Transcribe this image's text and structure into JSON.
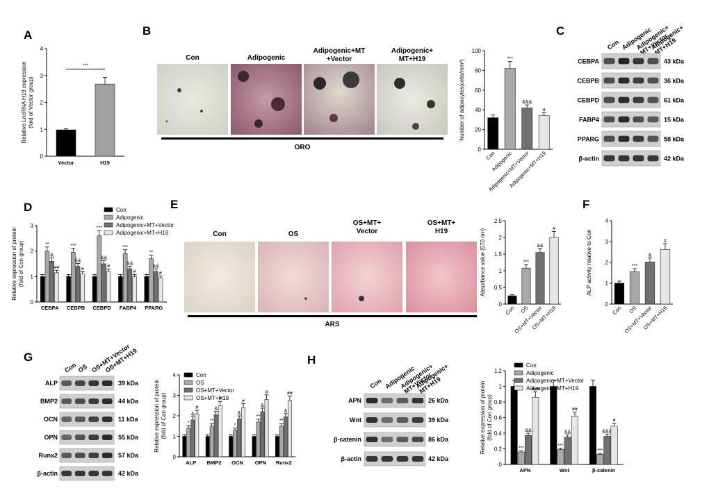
{
  "colors": {
    "con": "#000000",
    "g2": "#a8a8a8",
    "g3": "#707070",
    "g4": "#e6e6e6",
    "vector": "#000000",
    "h19": "#a0a0a0"
  },
  "panel_letters": [
    "A",
    "B",
    "C",
    "D",
    "E",
    "F",
    "G",
    "H"
  ],
  "b_titles": [
    "Con",
    "Adipogenic",
    "Adipogenic+MT\n+Vector",
    "Adipogenic+\nMT+H19"
  ],
  "b_stain": "ORO",
  "e_titles": [
    "Con",
    "OS",
    "OS+MT+\nVector",
    "OS+MT+\nH19"
  ],
  "e_stain": "ARS",
  "c_blot": {
    "lanes": [
      "Con",
      "Adipogenic",
      "Adipogenic+\nMT+Vector",
      "Adipogenic+\nMT+H19"
    ],
    "rows": [
      {
        "name": "CEBPA",
        "kda": "43 kDa"
      },
      {
        "name": "CEBPB",
        "kda": "36 kDa"
      },
      {
        "name": "CEBPD",
        "kda": "61 kDa"
      },
      {
        "name": "FABP4",
        "kda": "15 kDa"
      },
      {
        "name": "PPARG",
        "kda": "58 kDa"
      },
      {
        "name": "β-actin",
        "kda": "42 kDa"
      }
    ]
  },
  "g_blot": {
    "lanes": [
      "Con",
      "OS",
      "OS+MT+Vector",
      "OS+MT+H19"
    ],
    "rows": [
      {
        "name": "ALP",
        "kda": "39 kDa"
      },
      {
        "name": "BMP2",
        "kda": "44 kDa"
      },
      {
        "name": "OCN",
        "kda": "11 kDa"
      },
      {
        "name": "OPN",
        "kda": "55 kDa"
      },
      {
        "name": "Runx2",
        "kda": "57 kDa"
      },
      {
        "name": "β-actin",
        "kda": "42 kDa"
      }
    ]
  },
  "h_blot": {
    "lanes": [
      "Con",
      "Adipogenic",
      "Adipogenic+\nMT+Vector",
      "Adipogenic+\nMT+H19"
    ],
    "rows": [
      {
        "name": "APN",
        "kda": "26 kDa"
      },
      {
        "name": "Wnt",
        "kda": "39 kDa"
      },
      {
        "name": "β-catenin",
        "kda": "86 kDa"
      },
      {
        "name": "β-actin",
        "kda": "42 kDa"
      }
    ]
  },
  "chart_data": [
    {
      "id": "A",
      "type": "bar",
      "categories": [
        "Vector",
        "H19"
      ],
      "values": [
        0.98,
        2.68
      ],
      "errors": [
        0.04,
        0.25
      ],
      "ylabel": "Relative LncRNA H19 expression\n(fold of Vector group)",
      "ylim": [
        0,
        4
      ],
      "yticks": [
        0,
        1,
        2,
        3,
        4
      ],
      "significance": "***"
    },
    {
      "id": "B",
      "type": "bar",
      "categories": [
        "Con",
        "Adipogenic",
        "Adipogenic+MT+Vector",
        "Adipogenic+MT+H19"
      ],
      "values": [
        32,
        82,
        42,
        34
      ],
      "errors": [
        3,
        7,
        3,
        3
      ],
      "sig": [
        "",
        "***",
        "&&&",
        "#"
      ],
      "ylabel": "Number of adipocytes(cells/mm²)",
      "ylim": [
        0,
        100
      ],
      "yticks": [
        0,
        20,
        40,
        60,
        80,
        100
      ]
    },
    {
      "id": "D",
      "type": "bar",
      "categories": [
        "CEBPA",
        "CEBPB",
        "CEBPD",
        "FABP4",
        "PPARG"
      ],
      "legend": [
        "Con",
        "Adipogenic",
        "Adipogenic+MT+Vector",
        "Adipogenic+MT+H19"
      ],
      "series": [
        {
          "name": "Con",
          "values": [
            1,
            1,
            1,
            1,
            1
          ]
        },
        {
          "name": "Adipogenic",
          "values": [
            2.0,
            1.95,
            2.6,
            1.9,
            1.7
          ]
        },
        {
          "name": "Adipogenic+MT+Vector",
          "values": [
            1.6,
            1.4,
            1.5,
            1.3,
            1.2
          ]
        },
        {
          "name": "Adipogenic+MT+H19",
          "values": [
            1.15,
            1.1,
            1.2,
            1.0,
            0.95
          ]
        }
      ],
      "sig": [
        [
          "",
          "**",
          "&",
          "##"
        ],
        [
          "",
          "***",
          "&&",
          "#"
        ],
        [
          "",
          "***",
          "&&",
          "#"
        ],
        [
          "",
          "***",
          "&&",
          "#"
        ],
        [
          "",
          "**",
          "&&",
          "#"
        ]
      ],
      "ylabel": "Relative  expression of protein\n(fold of Con group)",
      "ylim": [
        0,
        3
      ],
      "yticks": [
        0,
        1,
        2,
        3
      ]
    },
    {
      "id": "E",
      "type": "bar",
      "categories": [
        "Con",
        "OS",
        "OS+MT+Vector",
        "OS+MT+H19"
      ],
      "values": [
        0.25,
        1.08,
        1.55,
        2.0
      ],
      "errors": [
        0.03,
        0.1,
        0.12,
        0.18
      ],
      "sig": [
        "",
        "***",
        "&&",
        "#"
      ],
      "ylabel": "Absorbance value (570 nm)",
      "ylim": [
        0,
        2.5
      ],
      "yticks": [
        0,
        0.5,
        1.0,
        1.5,
        2.0,
        2.5
      ]
    },
    {
      "id": "F",
      "type": "bar",
      "categories": [
        "Con",
        "OS",
        "OS+MT+Vector",
        "OS+MT+H19"
      ],
      "values": [
        1.0,
        1.55,
        2.02,
        2.62
      ],
      "errors": [
        0.1,
        0.15,
        0.2,
        0.28
      ],
      "sig": [
        "",
        "***",
        "&",
        "#"
      ],
      "ylabel": "ALP activity relative to Con",
      "ylim": [
        0,
        4
      ],
      "yticks": [
        0,
        1,
        2,
        3,
        4
      ]
    },
    {
      "id": "G",
      "type": "bar",
      "categories": [
        "ALP",
        "BMP2",
        "OCN",
        "OPN",
        "Runx2"
      ],
      "legend": [
        "Con",
        "OS",
        "OS+MT+Vector",
        "OS+MT+H19"
      ],
      "series": [
        {
          "name": "Con",
          "values": [
            1,
            1,
            1,
            1,
            1
          ]
        },
        {
          "name": "OS",
          "values": [
            1.4,
            1.5,
            1.3,
            1.7,
            1.5
          ]
        },
        {
          "name": "OS+MT+Vector",
          "values": [
            1.8,
            2.05,
            1.85,
            2.2,
            1.95
          ]
        },
        {
          "name": "OS+MT+H19",
          "values": [
            2.1,
            2.5,
            2.4,
            2.8,
            2.75
          ]
        }
      ],
      "sig": [
        [
          "",
          "*",
          "&",
          "#"
        ],
        [
          "",
          "**",
          "&",
          "#"
        ],
        [
          "",
          "*",
          "&",
          "#"
        ],
        [
          "",
          "**",
          "&",
          "#"
        ],
        [
          "",
          "**",
          "&",
          "##"
        ]
      ],
      "ylabel": "Relative  expression of protein\n(fold of Con group)",
      "ylim": [
        0,
        4
      ],
      "yticks": [
        0,
        1,
        2,
        3,
        4
      ]
    },
    {
      "id": "H",
      "type": "bar",
      "categories": [
        "APN",
        "Wnt",
        "β-catenin"
      ],
      "legend": [
        "Con",
        "Adipogenic",
        "Adipogenic+MT+Vector",
        "Adipogenic+MT+H19"
      ],
      "series": [
        {
          "name": "Con",
          "values": [
            1,
            1,
            1
          ]
        },
        {
          "name": "Adipogenic",
          "values": [
            0.16,
            0.19,
            0.13
          ]
        },
        {
          "name": "Adipogenic+MT+Vector",
          "values": [
            0.37,
            0.35,
            0.36
          ]
        },
        {
          "name": "Adipogenic+MT+H19",
          "values": [
            0.86,
            0.62,
            0.49
          ]
        }
      ],
      "sig": [
        [
          "",
          "***",
          "&&",
          "###"
        ],
        [
          "",
          "***",
          "&&",
          "##"
        ],
        [
          "",
          "***",
          "&&&",
          "#"
        ]
      ],
      "ylabel": "Relative  expression of protein\n(fold of Con group)",
      "ylim": [
        0,
        1.2
      ],
      "yticks": [
        0,
        0.2,
        0.4,
        0.6,
        0.8,
        1.0,
        1.2
      ]
    }
  ]
}
